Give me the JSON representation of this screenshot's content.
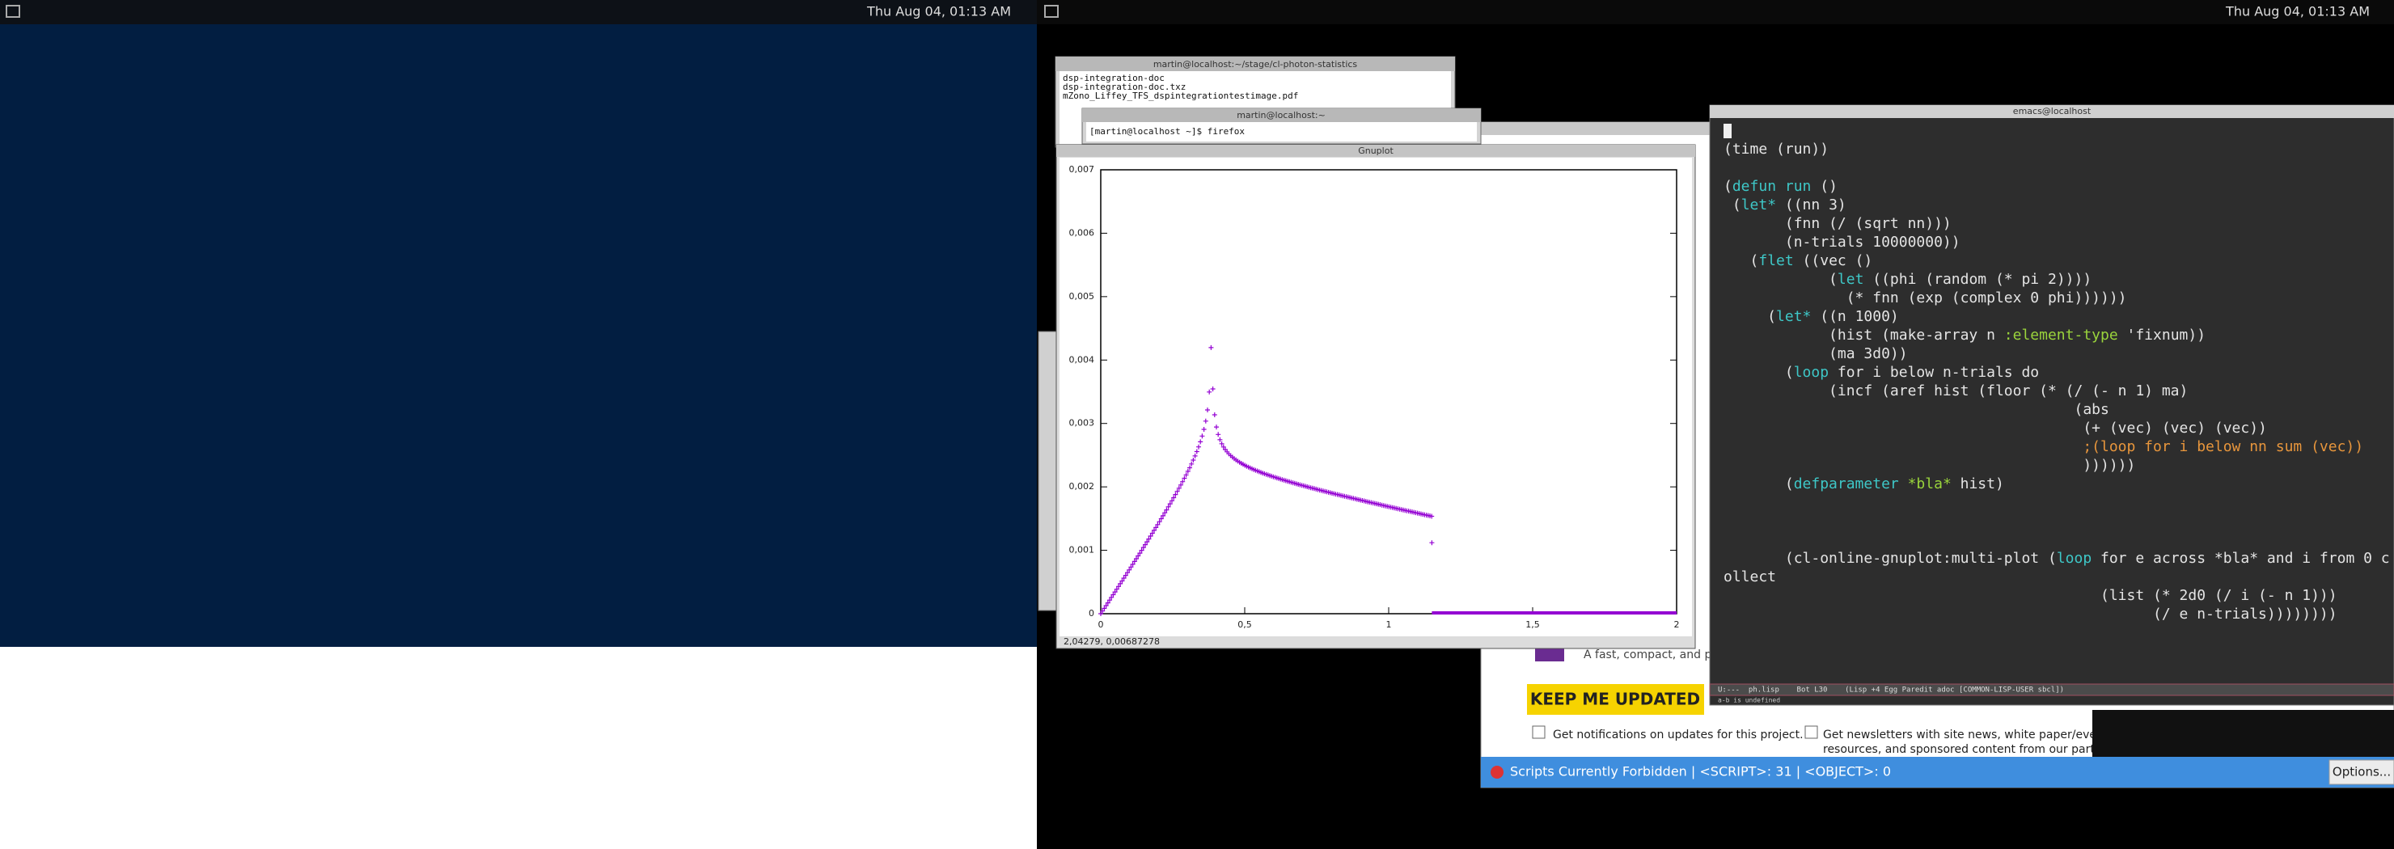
{
  "left_screen": {
    "clock": "Thu Aug 04, 01:13 AM"
  },
  "right_screen": {
    "clock": "Thu Aug 04, 01:13 AM"
  },
  "terminal_1": {
    "title": "martin@localhost:~/stage/cl-photon-statistics",
    "lines": [
      "dsp-integration-doc",
      "dsp-integration-doc.txz",
      "mZono_Liffey_TFS_dspintegrationtestimage.pdf"
    ]
  },
  "terminal_2": {
    "title": "martin@localhost:~",
    "lines": [
      "[martin@localhost ~]$ firefox"
    ]
  },
  "gnuplot": {
    "title": "Gnuplot",
    "yticks": [
      "0",
      "0,001",
      "0,002",
      "0,003",
      "0,004",
      "0,005",
      "0,006",
      "0,007"
    ],
    "xticks": [
      "0",
      "0,5",
      "1",
      "1,5",
      "2"
    ],
    "status": "2,04279,  0,00687278"
  },
  "browser": {
    "tagline": "A fast, compact, and powe",
    "button": "KEEP ME UPDATED",
    "notify": "Get notifications on updates for this project.",
    "newsletter": [
      "Get newsletters with site news, white paper/events",
      "resources, and sponsored content from our partners."
    ],
    "status": "Scripts Currently Forbidden | <SCRIPT>: 31 | <OBJECT>: 0",
    "options": "Options..."
  },
  "emacs": {
    "title": "emacs@localhost",
    "lines": [
      [
        {
          "text": "(time (run))"
        }
      ],
      [],
      [
        {
          "text": "("
        },
        {
          "text": "defun run",
          "color": "#3ec7c7"
        },
        {
          "text": " ()"
        }
      ],
      [
        {
          "text": " ("
        },
        {
          "text": "let*",
          "color": "#3ec7c7"
        },
        {
          "text": " ((nn 3)"
        }
      ],
      [
        {
          "text": "       (fnn (/ (sqrt nn)))"
        }
      ],
      [
        {
          "text": "       (n-trials 10000000))"
        }
      ],
      [
        {
          "text": "   ("
        },
        {
          "text": "flet",
          "color": "#3ec7c7"
        },
        {
          "text": " ((vec ()"
        }
      ],
      [
        {
          "text": "            ("
        },
        {
          "text": "let",
          "color": "#3ec7c7"
        },
        {
          "text": " ((phi (random (* pi 2))))"
        }
      ],
      [
        {
          "text": "              (* fnn (exp (complex 0 phi))))))"
        }
      ],
      [
        {
          "text": "     ("
        },
        {
          "text": "let*",
          "color": "#3ec7c7"
        },
        {
          "text": " ((n 1000)"
        }
      ],
      [
        {
          "text": "            (hist (make-array n "
        },
        {
          "text": ":element-type",
          "color": "#9ad43c"
        },
        {
          "text": " 'fixnum))"
        }
      ],
      [
        {
          "text": "            (ma 3d0))"
        }
      ],
      [
        {
          "text": "       ("
        },
        {
          "text": "loop",
          "color": "#3ec7c7"
        },
        {
          "text": " for i below n-trials do"
        }
      ],
      [
        {
          "text": "            (incf (aref hist (floor (* (/ (- n 1) ma)"
        }
      ],
      [
        {
          "text": "                                        (abs"
        }
      ],
      [
        {
          "text": "                                         (+ (vec) (vec) (vec))"
        }
      ],
      [
        {
          "text": "                                         ;(loop for i below nn sum (vec))",
          "color": "#e8963c"
        }
      ],
      [
        {
          "text": "                                         ))))))"
        }
      ],
      [
        {
          "text": "       ("
        },
        {
          "text": "defparameter",
          "color": "#3ec7c7"
        },
        {
          "text": " "
        },
        {
          "text": "*bla*",
          "color": "#9ad43c"
        },
        {
          "text": " hist)"
        }
      ],
      [],
      [],
      [],
      [
        {
          "text": "       (cl-online-gnuplot:multi-plot ("
        },
        {
          "text": "loop",
          "color": "#3ec7c7"
        },
        {
          "text": " for e across *bla* and i from 0 c"
        }
      ],
      [
        {
          "text": "ollect"
        }
      ],
      [
        {
          "text": "                                           (list (* 2d0 (/ i (- n 1)))"
        }
      ],
      [
        {
          "text": "                                                 (/ e n-trials))))))))"
        }
      ]
    ],
    "mode_line": "U:---  ph.lisp    Bot L30    (Lisp +4 Egg Paredit adoc [COMMON-LISP-USER sbcl])",
    "echo": "a-b is undefined"
  }
}
